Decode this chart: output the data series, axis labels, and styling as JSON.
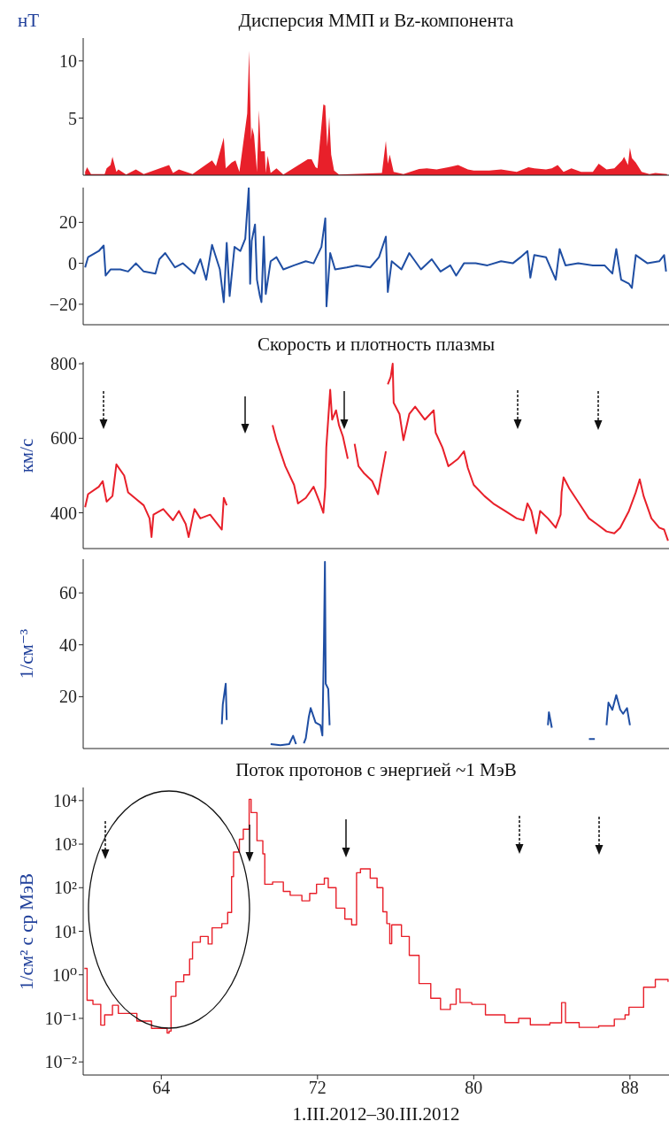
{
  "chart_data": [
    {
      "type": "area",
      "title": "Дисперсия ММП и Bz-компонента",
      "ylabel": "нТ",
      "color": "#e8202a",
      "xlim": [
        60,
        90
      ],
      "xticks": [
        64,
        72,
        80,
        88
      ],
      "ylim": [
        0,
        12
      ],
      "yticks": [
        5,
        10
      ],
      "tick_labels": "y",
      "x": [
        60.1,
        60.2,
        60.4,
        61.1,
        61.2,
        61.4,
        61.5,
        61.7,
        61.8,
        62.2,
        62.7,
        63.1,
        64.4,
        64.6,
        64.9,
        65.6,
        66.6,
        66.8,
        67.2,
        67.3,
        67.6,
        67.8,
        68.0,
        68.4,
        68.5,
        68.6,
        68.65,
        68.75,
        68.9,
        69.0,
        69.1,
        69.3,
        69.35,
        69.45,
        69.6,
        69.9,
        70.25,
        71.5,
        71.7,
        71.9,
        72.0,
        72.3,
        72.4,
        72.5,
        72.6,
        72.7,
        72.85,
        73.1,
        75.3,
        75.5,
        75.6,
        75.7,
        75.9,
        76.4,
        77.2,
        77.6,
        78.1,
        78.7,
        79.2,
        79.7,
        80.0,
        80.8,
        81.4,
        82.2,
        82.8,
        83.1,
        83.7,
        84.0,
        84.3,
        84.6,
        85.0,
        85.5,
        86.1,
        86.4,
        86.8,
        87.2,
        87.6,
        87.7,
        87.9,
        88.0,
        88.1,
        88.3,
        88.6,
        89.0,
        89.3,
        89.9
      ],
      "values": [
        0.3,
        0.7,
        0.1,
        0.1,
        0.6,
        0.9,
        1.6,
        0.3,
        0.5,
        0.05,
        0.5,
        0.1,
        0.9,
        0.2,
        0.5,
        0.1,
        1.3,
        0.8,
        3.3,
        0.6,
        1.1,
        1.3,
        0.3,
        5.4,
        10.9,
        3.1,
        4.2,
        3.5,
        0.3,
        5.7,
        2.1,
        2.1,
        0.2,
        1.7,
        0.2,
        0.6,
        0.05,
        1.4,
        1.4,
        0.7,
        0.6,
        6.2,
        6.1,
        2.5,
        5.1,
        1.8,
        0.4,
        0.05,
        0.2,
        3.0,
        1.0,
        1.8,
        0.3,
        0.1,
        0.55,
        0.6,
        0.5,
        0.7,
        0.9,
        0.5,
        0.4,
        0.4,
        0.5,
        0.3,
        0.7,
        0.6,
        0.5,
        0.6,
        0.9,
        0.3,
        0.6,
        0.3,
        0.3,
        1.0,
        0.5,
        0.6,
        1.3,
        1.6,
        0.9,
        2.4,
        1.5,
        1.1,
        0.3,
        0.1,
        0.2,
        0.1
      ]
    },
    {
      "type": "line",
      "color": "#1f4ea3",
      "xlim": [
        60,
        90
      ],
      "xticks": [
        64,
        72,
        80,
        88
      ],
      "ylim": [
        -30,
        37
      ],
      "yticks": [
        {
          "value": -20,
          "label": "−20"
        },
        0,
        20
      ],
      "tick_labels": "y",
      "x": [
        60.1,
        60.25,
        60.8,
        61.05,
        61.15,
        61.4,
        61.9,
        62.3,
        62.7,
        63.1,
        63.7,
        63.9,
        64.2,
        64.7,
        65.1,
        65.7,
        66.0,
        66.3,
        66.6,
        67.0,
        67.2,
        67.35,
        67.5,
        67.75,
        68.05,
        68.3,
        68.48,
        68.55,
        68.63,
        68.8,
        68.9,
        69.05,
        69.13,
        69.25,
        69.35,
        69.6,
        69.9,
        70.25,
        70.8,
        71.4,
        71.8,
        72.2,
        72.4,
        72.46,
        72.65,
        72.9,
        73.5,
        74.0,
        74.7,
        75.15,
        75.5,
        75.6,
        75.8,
        76.3,
        76.7,
        77.3,
        77.85,
        78.3,
        78.8,
        79.1,
        79.5,
        80.1,
        80.7,
        81.4,
        82.0,
        82.4,
        82.75,
        82.9,
        83.1,
        83.7,
        84.2,
        84.4,
        84.7,
        85.35,
        86.1,
        86.7,
        87.1,
        87.3,
        87.55,
        87.95,
        88.1,
        88.3,
        88.9,
        89.5,
        89.75,
        89.85
      ],
      "values": [
        -2,
        3,
        6,
        8.7,
        -6,
        -3,
        -3,
        -4,
        0,
        -4,
        -5,
        2,
        5,
        -2,
        0,
        -5,
        2,
        -8,
        9,
        -3,
        -19,
        10,
        -16,
        8,
        6,
        12,
        37,
        -10,
        11,
        19,
        -8,
        -16,
        -19,
        13,
        -15,
        1,
        3,
        -3,
        -1,
        1,
        0,
        8,
        22,
        -21,
        5,
        -3,
        -2,
        -1,
        -2,
        3,
        13,
        -14,
        1,
        -3,
        5,
        -3,
        2,
        -4,
        -1,
        -6,
        0,
        0,
        -1,
        1,
        0,
        3,
        6,
        -7,
        4,
        3,
        -8,
        7,
        -1,
        0,
        -1,
        -1,
        -5,
        7,
        -8,
        -10,
        -12,
        4,
        0,
        1,
        4,
        -4
      ]
    },
    {
      "type": "line",
      "title": "Скорость и плотность плазмы",
      "ylabel": "км/с",
      "color": "#e8202a",
      "xlim": [
        60,
        90
      ],
      "xticks": [
        64,
        72,
        80,
        88
      ],
      "ylim": [
        304,
        805
      ],
      "yticks": [
        400,
        600,
        800
      ],
      "tick_labels": "y",
      "x": [
        60.1,
        60.25,
        60.8,
        61.0,
        61.2,
        61.5,
        61.7,
        62.1,
        62.3,
        62.75,
        63.1,
        63.4,
        63.5,
        63.6,
        64.1,
        64.6,
        64.9,
        65.25,
        65.4,
        65.7,
        66.0,
        66.5,
        67.1,
        67.2,
        67.35,
        68.0,
        69.7,
        69.9,
        70.35,
        70.8,
        71.0,
        71.4,
        71.8,
        72.1,
        72.3,
        72.4,
        72.45,
        72.65,
        72.75,
        72.95,
        73.1,
        73.3,
        73.55,
        73.7,
        73.9,
        74.1,
        74.4,
        74.8,
        75.1,
        75.25,
        75.5,
        75.55,
        75.6,
        75.75,
        75.85,
        75.9,
        76.2,
        76.4,
        76.7,
        77.0,
        77.5,
        77.95,
        78.05,
        78.4,
        78.7,
        79.2,
        79.5,
        79.7,
        80.0,
        80.55,
        81.0,
        81.6,
        82.2,
        82.55,
        82.75,
        82.95,
        83.2,
        83.4,
        83.8,
        84.2,
        84.45,
        84.5,
        84.6,
        84.9,
        85.4,
        85.9,
        86.3,
        86.8,
        87.2,
        87.5,
        87.95,
        88.3,
        88.5,
        88.7,
        89.1,
        89.5,
        89.75,
        89.95
      ],
      "values": [
        415,
        450,
        470,
        485,
        430,
        445,
        530,
        500,
        455,
        435,
        420,
        385,
        335,
        395,
        410,
        380,
        405,
        370,
        335,
        410,
        385,
        395,
        355,
        440,
        420,
        null,
        635,
        595,
        525,
        475,
        425,
        440,
        470,
        430,
        400,
        470,
        575,
        730,
        650,
        675,
        635,
        605,
        545,
        null,
        585,
        525,
        505,
        485,
        450,
        495,
        565,
        null,
        745,
        765,
        800,
        695,
        665,
        595,
        665,
        685,
        650,
        675,
        615,
        575,
        525,
        545,
        565,
        520,
        475,
        445,
        425,
        405,
        385,
        380,
        425,
        405,
        345,
        405,
        385,
        360,
        395,
        455,
        495,
        465,
        425,
        385,
        370,
        350,
        345,
        360,
        405,
        455,
        490,
        445,
        385,
        360,
        355,
        325
      ]
    },
    {
      "type": "line",
      "ylabel": "1/см⁻³",
      "color": "#1f4ea3",
      "xlim": [
        60,
        90
      ],
      "xticks": [
        64,
        72,
        80,
        88
      ],
      "ylim": [
        0,
        73
      ],
      "yticks": [
        20,
        40,
        60
      ],
      "tick_labels": "y",
      "x": [
        67.1,
        67.15,
        67.3,
        67.35,
        67.5,
        69.6,
        70.1,
        70.55,
        70.75,
        70.9,
        71.1,
        71.3,
        71.4,
        71.55,
        71.65,
        71.9,
        72.15,
        72.25,
        72.33,
        72.38,
        72.42,
        72.55,
        72.62,
        73.0,
        83.8,
        83.85,
        84.0,
        85.0,
        85.9,
        86.2,
        86.5,
        86.8,
        86.9,
        87.1,
        87.3,
        87.5,
        87.65,
        87.85,
        88.0
      ],
      "values": [
        9.4,
        17,
        25,
        11,
        null,
        1.7,
        1.3,
        1.7,
        4.9,
        1.7,
        null,
        2,
        4,
        12,
        15.6,
        10,
        9,
        5,
        41,
        72,
        25,
        23,
        9,
        null,
        9,
        14,
        8,
        null,
        3.7,
        3.7,
        null,
        9,
        17.7,
        14.9,
        20.6,
        15,
        13.4,
        15.6,
        9
      ]
    },
    {
      "type": "step",
      "title": "Поток протонов с энергией ~1 МэВ",
      "ylabel": "1/см² с ср МэВ",
      "xlabel": "1.III.2012–30.III.2012",
      "color": "#e8202a",
      "log": true,
      "xlim": [
        60,
        90
      ],
      "xticks": [
        64,
        72,
        80,
        88
      ],
      "ylim": [
        0.005,
        20000
      ],
      "yticks": [
        {
          "value": 0.01,
          "label": "10⁻²"
        },
        {
          "value": 0.1,
          "label": "10⁻¹"
        },
        {
          "value": 1,
          "label": "10⁰"
        },
        {
          "value": 10,
          "label": "10¹"
        },
        {
          "value": 100,
          "label": "10²"
        },
        {
          "value": 1000,
          "label": "10³"
        },
        {
          "value": 10000,
          "label": "10⁴"
        }
      ],
      "x": [
        60.06,
        60.2,
        60.5,
        60.9,
        61.1,
        61.5,
        61.8,
        62.75,
        63.5,
        64.3,
        64.4,
        64.5,
        64.75,
        65.15,
        65.45,
        65.6,
        66.0,
        66.4,
        66.6,
        67.1,
        67.4,
        67.6,
        67.7,
        68.0,
        68.2,
        68.5,
        68.6,
        68.9,
        69.2,
        69.3,
        69.7,
        70.25,
        70.6,
        71.2,
        71.6,
        71.95,
        72.35,
        72.55,
        72.95,
        73.4,
        73.75,
        74.0,
        74.2,
        74.7,
        75.05,
        75.35,
        75.55,
        75.7,
        75.8,
        76.3,
        76.7,
        77.2,
        77.8,
        78.3,
        78.8,
        79.1,
        79.3,
        79.9,
        80.6,
        81.6,
        82.3,
        82.9,
        83.9,
        84.5,
        84.7,
        85.4,
        86.4,
        87.2,
        87.75,
        87.95,
        88.7,
        89.3,
        89.95
      ],
      "values": [
        1.4,
        0.26,
        0.21,
        0.07,
        0.12,
        0.2,
        0.13,
        0.087,
        0.059,
        0.046,
        0.051,
        0.32,
        0.69,
        1.0,
        2.3,
        5.6,
        7.6,
        5.1,
        12,
        15,
        27,
        180,
        660,
        1300,
        2200,
        10700,
        5300,
        1200,
        600,
        120,
        135,
        82,
        67,
        50,
        74,
        120,
        165,
        100,
        34,
        19,
        14,
        220,
        270,
        165,
        100,
        28,
        15,
        5.2,
        14,
        7.6,
        2.8,
        0.63,
        0.29,
        0.16,
        0.21,
        0.47,
        0.23,
        0.21,
        0.12,
        0.08,
        0.1,
        0.071,
        0.079,
        0.23,
        0.08,
        0.062,
        0.067,
        0.096,
        0.12,
        0.18,
        0.52,
        0.78,
        0.69
      ]
    }
  ]
}
